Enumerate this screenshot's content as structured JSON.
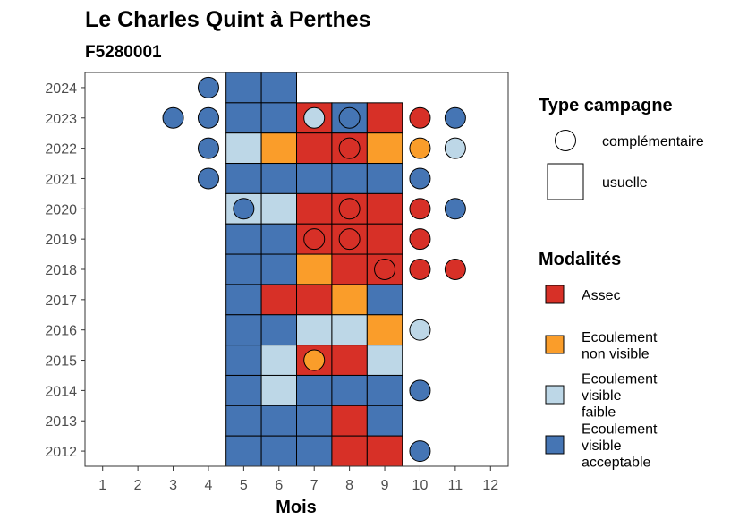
{
  "title": "Le Charles Quint à Perthes",
  "subtitle": "F5280001",
  "chart_data": {
    "type": "heatmap",
    "xlabel": "Mois",
    "ylabel": "",
    "x_ticks": [
      "1",
      "2",
      "3",
      "4",
      "5",
      "6",
      "7",
      "8",
      "9",
      "10",
      "11",
      "12"
    ],
    "y_ticks": [
      "2012",
      "2013",
      "2014",
      "2015",
      "2016",
      "2017",
      "2018",
      "2019",
      "2020",
      "2021",
      "2022",
      "2023",
      "2024"
    ],
    "xlim": [
      0.5,
      12.5
    ],
    "ylim": [
      2011.5,
      2024.5
    ],
    "colors": {
      "Assec": "#d73027",
      "Ecoulement non visible": "#fa9d2a",
      "Ecoulement visible faible": "#bdd7e7",
      "Ecoulement visible acceptable": "#4575b4"
    },
    "usuelle": [
      {
        "year": 2024,
        "month": 5,
        "modalite": "Ecoulement visible acceptable"
      },
      {
        "year": 2024,
        "month": 6,
        "modalite": "Ecoulement visible acceptable"
      },
      {
        "year": 2023,
        "month": 5,
        "modalite": "Ecoulement visible acceptable"
      },
      {
        "year": 2023,
        "month": 6,
        "modalite": "Ecoulement visible acceptable"
      },
      {
        "year": 2023,
        "month": 7,
        "modalite": "Assec"
      },
      {
        "year": 2023,
        "month": 8,
        "modalite": "Ecoulement visible acceptable"
      },
      {
        "year": 2023,
        "month": 9,
        "modalite": "Assec"
      },
      {
        "year": 2022,
        "month": 5,
        "modalite": "Ecoulement visible faible"
      },
      {
        "year": 2022,
        "month": 6,
        "modalite": "Ecoulement non visible"
      },
      {
        "year": 2022,
        "month": 7,
        "modalite": "Assec"
      },
      {
        "year": 2022,
        "month": 8,
        "modalite": "Assec"
      },
      {
        "year": 2022,
        "month": 9,
        "modalite": "Ecoulement non visible"
      },
      {
        "year": 2021,
        "month": 5,
        "modalite": "Ecoulement visible acceptable"
      },
      {
        "year": 2021,
        "month": 6,
        "modalite": "Ecoulement visible acceptable"
      },
      {
        "year": 2021,
        "month": 7,
        "modalite": "Ecoulement visible acceptable"
      },
      {
        "year": 2021,
        "month": 8,
        "modalite": "Ecoulement visible acceptable"
      },
      {
        "year": 2021,
        "month": 9,
        "modalite": "Ecoulement visible acceptable"
      },
      {
        "year": 2020,
        "month": 5,
        "modalite": "Ecoulement visible faible"
      },
      {
        "year": 2020,
        "month": 6,
        "modalite": "Ecoulement visible faible"
      },
      {
        "year": 2020,
        "month": 7,
        "modalite": "Assec"
      },
      {
        "year": 2020,
        "month": 8,
        "modalite": "Assec"
      },
      {
        "year": 2020,
        "month": 9,
        "modalite": "Assec"
      },
      {
        "year": 2019,
        "month": 5,
        "modalite": "Ecoulement visible acceptable"
      },
      {
        "year": 2019,
        "month": 6,
        "modalite": "Ecoulement visible acceptable"
      },
      {
        "year": 2019,
        "month": 7,
        "modalite": "Assec"
      },
      {
        "year": 2019,
        "month": 8,
        "modalite": "Assec"
      },
      {
        "year": 2019,
        "month": 9,
        "modalite": "Assec"
      },
      {
        "year": 2018,
        "month": 5,
        "modalite": "Ecoulement visible acceptable"
      },
      {
        "year": 2018,
        "month": 6,
        "modalite": "Ecoulement visible acceptable"
      },
      {
        "year": 2018,
        "month": 7,
        "modalite": "Ecoulement non visible"
      },
      {
        "year": 2018,
        "month": 8,
        "modalite": "Assec"
      },
      {
        "year": 2018,
        "month": 9,
        "modalite": "Assec"
      },
      {
        "year": 2017,
        "month": 5,
        "modalite": "Ecoulement visible acceptable"
      },
      {
        "year": 2017,
        "month": 6,
        "modalite": "Assec"
      },
      {
        "year": 2017,
        "month": 7,
        "modalite": "Assec"
      },
      {
        "year": 2017,
        "month": 8,
        "modalite": "Ecoulement non visible"
      },
      {
        "year": 2017,
        "month": 9,
        "modalite": "Ecoulement visible acceptable"
      },
      {
        "year": 2016,
        "month": 5,
        "modalite": "Ecoulement visible acceptable"
      },
      {
        "year": 2016,
        "month": 6,
        "modalite": "Ecoulement visible acceptable"
      },
      {
        "year": 2016,
        "month": 7,
        "modalite": "Ecoulement visible faible"
      },
      {
        "year": 2016,
        "month": 8,
        "modalite": "Ecoulement visible faible"
      },
      {
        "year": 2016,
        "month": 9,
        "modalite": "Ecoulement non visible"
      },
      {
        "year": 2015,
        "month": 5,
        "modalite": "Ecoulement visible acceptable"
      },
      {
        "year": 2015,
        "month": 6,
        "modalite": "Ecoulement visible faible"
      },
      {
        "year": 2015,
        "month": 7,
        "modalite": "Assec"
      },
      {
        "year": 2015,
        "month": 8,
        "modalite": "Assec"
      },
      {
        "year": 2015,
        "month": 9,
        "modalite": "Ecoulement visible faible"
      },
      {
        "year": 2014,
        "month": 5,
        "modalite": "Ecoulement visible acceptable"
      },
      {
        "year": 2014,
        "month": 6,
        "modalite": "Ecoulement visible faible"
      },
      {
        "year": 2014,
        "month": 7,
        "modalite": "Ecoulement visible acceptable"
      },
      {
        "year": 2014,
        "month": 8,
        "modalite": "Ecoulement visible acceptable"
      },
      {
        "year": 2014,
        "month": 9,
        "modalite": "Ecoulement visible acceptable"
      },
      {
        "year": 2013,
        "month": 5,
        "modalite": "Ecoulement visible acceptable"
      },
      {
        "year": 2013,
        "month": 6,
        "modalite": "Ecoulement visible acceptable"
      },
      {
        "year": 2013,
        "month": 7,
        "modalite": "Ecoulement visible acceptable"
      },
      {
        "year": 2013,
        "month": 8,
        "modalite": "Assec"
      },
      {
        "year": 2013,
        "month": 9,
        "modalite": "Ecoulement visible acceptable"
      },
      {
        "year": 2012,
        "month": 5,
        "modalite": "Ecoulement visible acceptable"
      },
      {
        "year": 2012,
        "month": 6,
        "modalite": "Ecoulement visible acceptable"
      },
      {
        "year": 2012,
        "month": 7,
        "modalite": "Ecoulement visible acceptable"
      },
      {
        "year": 2012,
        "month": 8,
        "modalite": "Assec"
      },
      {
        "year": 2012,
        "month": 9,
        "modalite": "Assec"
      }
    ],
    "complementaire": [
      {
        "year": 2024,
        "month": 4,
        "modalite": "Ecoulement visible acceptable"
      },
      {
        "year": 2023,
        "month": 3,
        "modalite": "Ecoulement visible acceptable"
      },
      {
        "year": 2023,
        "month": 4,
        "modalite": "Ecoulement visible acceptable"
      },
      {
        "year": 2023,
        "month": 7,
        "modalite": "Ecoulement visible faible"
      },
      {
        "year": 2023,
        "month": 8,
        "modalite": "Ecoulement visible acceptable"
      },
      {
        "year": 2023,
        "month": 10,
        "modalite": "Assec"
      },
      {
        "year": 2023,
        "month": 11,
        "modalite": "Ecoulement visible acceptable"
      },
      {
        "year": 2022,
        "month": 4,
        "modalite": "Ecoulement visible acceptable"
      },
      {
        "year": 2022,
        "month": 8,
        "modalite": "Assec"
      },
      {
        "year": 2022,
        "month": 10,
        "modalite": "Ecoulement non visible"
      },
      {
        "year": 2022,
        "month": 11,
        "modalite": "Ecoulement visible faible"
      },
      {
        "year": 2021,
        "month": 4,
        "modalite": "Ecoulement visible acceptable"
      },
      {
        "year": 2021,
        "month": 10,
        "modalite": "Ecoulement visible acceptable"
      },
      {
        "year": 2020,
        "month": 5,
        "modalite": "Ecoulement visible acceptable"
      },
      {
        "year": 2020,
        "month": 8,
        "modalite": "Assec"
      },
      {
        "year": 2020,
        "month": 10,
        "modalite": "Assec"
      },
      {
        "year": 2020,
        "month": 11,
        "modalite": "Ecoulement visible acceptable"
      },
      {
        "year": 2019,
        "month": 7,
        "modalite": "Assec"
      },
      {
        "year": 2019,
        "month": 8,
        "modalite": "Assec"
      },
      {
        "year": 2019,
        "month": 10,
        "modalite": "Assec"
      },
      {
        "year": 2018,
        "month": 9,
        "modalite": "Assec"
      },
      {
        "year": 2018,
        "month": 10,
        "modalite": "Assec"
      },
      {
        "year": 2018,
        "month": 11,
        "modalite": "Assec"
      },
      {
        "year": 2016,
        "month": 10,
        "modalite": "Ecoulement visible faible"
      },
      {
        "year": 2015,
        "month": 7,
        "modalite": "Ecoulement non visible"
      },
      {
        "year": 2014,
        "month": 10,
        "modalite": "Ecoulement visible acceptable"
      },
      {
        "year": 2012,
        "month": 10,
        "modalite": "Ecoulement visible acceptable"
      }
    ]
  },
  "legend_type": {
    "title": "Type campagne",
    "items": [
      "complémentaire",
      "usuelle"
    ]
  },
  "legend_modalites": {
    "title": "Modalités",
    "items": [
      {
        "key": "Assec",
        "lines": [
          "Assec"
        ]
      },
      {
        "key": "Ecoulement non visible",
        "lines": [
          "Ecoulement",
          "non visible"
        ]
      },
      {
        "key": "Ecoulement visible faible",
        "lines": [
          "Ecoulement",
          "visible",
          "faible"
        ]
      },
      {
        "key": "Ecoulement visible acceptable",
        "lines": [
          "Ecoulement",
          "visible",
          "acceptable"
        ]
      }
    ]
  }
}
